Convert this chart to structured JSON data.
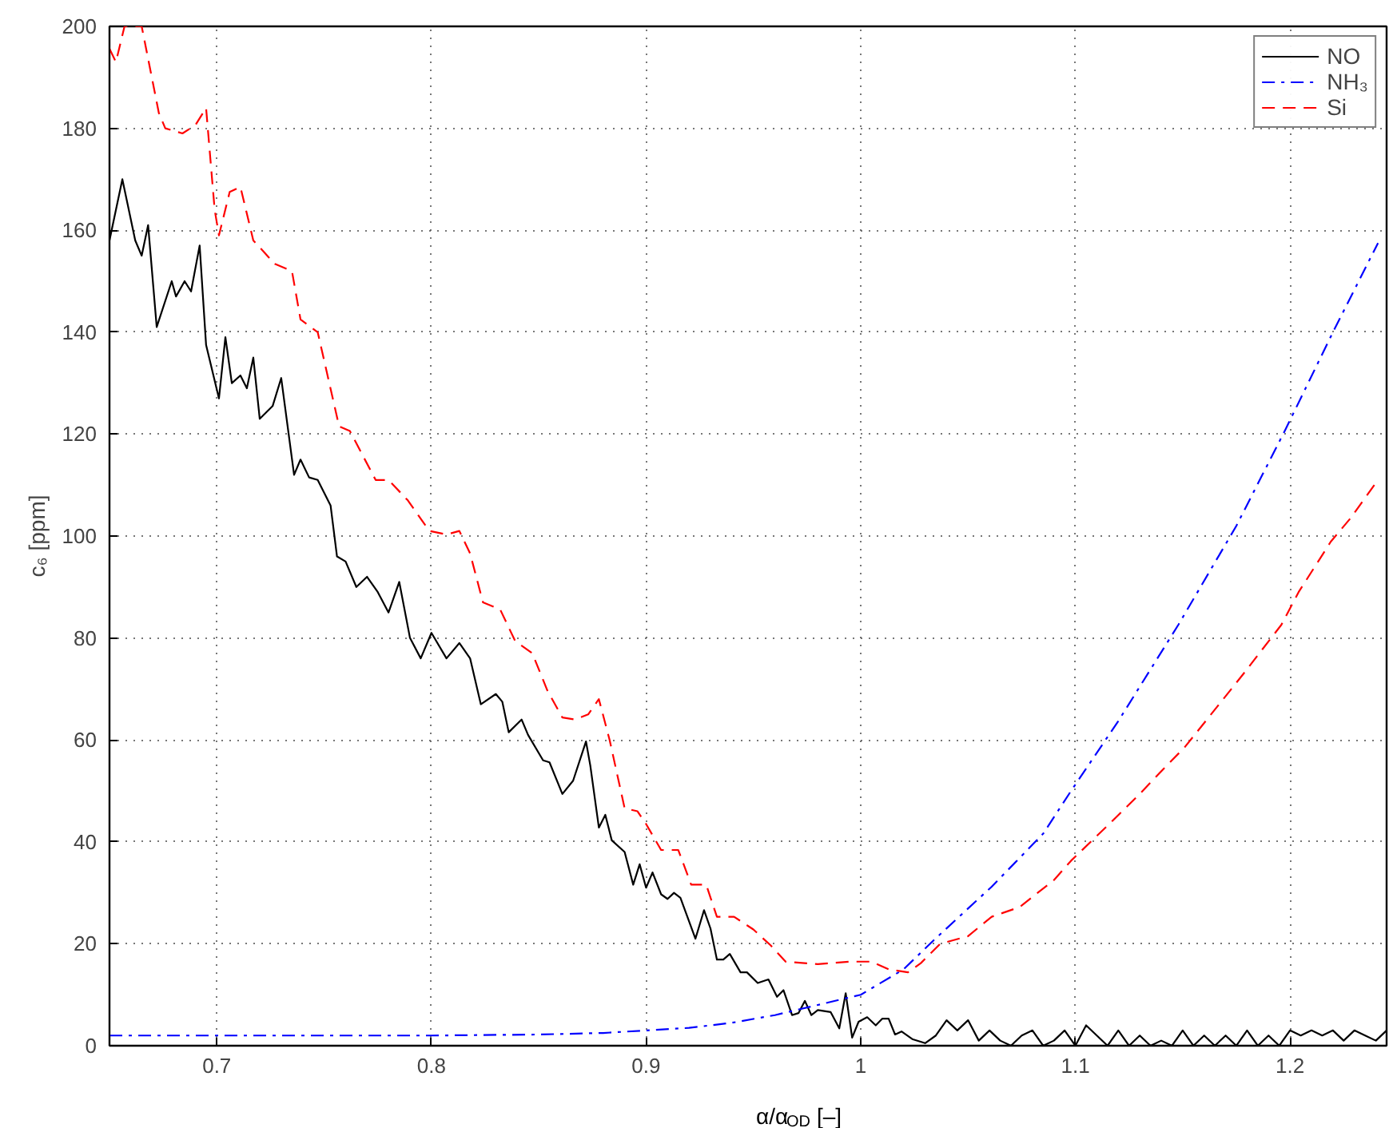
{
  "chart_data": {
    "type": "line",
    "xlabel": "α/α$_{OD}$ [–]",
    "ylabel": "c₆ [ppm]",
    "xlim": [
      0.65,
      1.245
    ],
    "ylim": [
      0,
      200
    ],
    "xticks": [
      0.7,
      0.8,
      0.9,
      {
        "value": 1.0,
        "label": "1"
      },
      1.1,
      1.2
    ],
    "yticks": [
      0,
      20,
      40,
      60,
      80,
      100,
      120,
      140,
      160,
      180,
      200
    ],
    "grid": true,
    "legend": "top right",
    "series": [
      {
        "name": "NO",
        "color": "#000000",
        "line_style": "solid",
        "x": [
          0.65,
          0.656,
          0.662,
          0.665,
          0.668,
          0.672,
          0.679,
          0.681,
          0.685,
          0.688,
          0.692,
          0.695,
          0.701,
          0.704,
          0.707,
          0.711,
          0.714,
          0.717,
          0.72,
          0.726,
          0.73,
          0.736,
          0.739,
          0.743,
          0.747,
          0.75,
          0.753,
          0.756,
          0.76,
          0.765,
          0.77,
          0.775,
          0.78,
          0.785,
          0.79,
          0.795,
          0.8,
          0.807,
          0.813,
          0.818,
          0.823,
          0.83,
          0.833,
          0.836,
          0.842,
          0.845,
          0.852,
          0.855,
          0.861,
          0.866,
          0.872,
          0.874,
          0.878,
          0.881,
          0.884,
          0.89,
          0.894,
          0.897,
          0.9,
          0.903,
          0.907,
          0.91,
          0.913,
          0.916,
          0.923,
          0.927,
          0.93,
          0.933,
          0.936,
          0.939,
          0.944,
          0.947,
          0.952,
          0.957,
          0.961,
          0.964,
          0.968,
          0.971,
          0.974,
          0.977,
          0.98,
          0.986,
          0.99,
          0.993,
          0.996,
          0.999,
          1.003,
          1.007,
          1.01,
          1.013,
          1.016,
          1.019,
          1.024,
          1.03,
          1.035,
          1.04,
          1.045,
          1.05,
          1.055,
          1.06,
          1.065,
          1.07,
          1.075,
          1.08,
          1.085,
          1.09,
          1.095,
          1.1,
          1.105,
          1.11,
          1.115,
          1.12,
          1.125,
          1.13,
          1.135,
          1.14,
          1.145,
          1.15,
          1.155,
          1.16,
          1.165,
          1.17,
          1.175,
          1.18,
          1.185,
          1.19,
          1.195,
          1.2,
          1.205,
          1.21,
          1.215,
          1.22,
          1.225,
          1.23,
          1.235,
          1.24,
          1.245
        ],
        "values": [
          158,
          170,
          158,
          155,
          161,
          141,
          150,
          147,
          150,
          148,
          157,
          137.5,
          127,
          139,
          130,
          131.5,
          129,
          135,
          123,
          125.5,
          131,
          112,
          115,
          111.5,
          111,
          108.5,
          106,
          96,
          95,
          90,
          92,
          89,
          85,
          91,
          80,
          76,
          81,
          76,
          79,
          76,
          67,
          69,
          67.5,
          61.5,
          64,
          61,
          56,
          55.6,
          49.4,
          52,
          59.7,
          55,
          42.8,
          45.3,
          40.3,
          38,
          31.6,
          35.6,
          31,
          34,
          29.7,
          28.8,
          30,
          29,
          21,
          26.6,
          23,
          16.9,
          16.9,
          18,
          14.4,
          14.4,
          12.3,
          13,
          9.6,
          10.9,
          6,
          6.4,
          8.8,
          6,
          7,
          6.6,
          3.4,
          10.3,
          1.6,
          4.7,
          5.6,
          4,
          5.3,
          5.3,
          2.2,
          2.8,
          1.3,
          0.5,
          2,
          5,
          3,
          5,
          1,
          3,
          1,
          0,
          2,
          3,
          0,
          1,
          3,
          0,
          4,
          2,
          0,
          3,
          0,
          2,
          0,
          1,
          0,
          3,
          0,
          2,
          0,
          2,
          0,
          3,
          0,
          2,
          0,
          3,
          2,
          3,
          2,
          3,
          1,
          3,
          2,
          1,
          3
        ]
      },
      {
        "name": "NH₃",
        "color": "#0000ff",
        "line_style": "dashdot",
        "x": [
          0.65,
          0.7,
          0.75,
          0.8,
          0.85,
          0.88,
          0.9,
          0.92,
          0.94,
          0.96,
          0.98,
          1.0,
          1.02,
          1.034,
          1.061,
          1.085,
          1.098,
          1.12,
          1.148,
          1.175,
          1.198,
          1.22,
          1.241
        ],
        "values": [
          2,
          2,
          2,
          2,
          2.2,
          2.5,
          3,
          3.5,
          4.5,
          6,
          8,
          10,
          15,
          20.7,
          31.2,
          41.6,
          50,
          63.7,
          82.6,
          102,
          121,
          140,
          157.5
        ]
      },
      {
        "name": "Si",
        "color": "#ff0000",
        "line_style": "dashed",
        "x": [
          0.65,
          0.653,
          0.657,
          0.665,
          0.673,
          0.676,
          0.684,
          0.69,
          0.695,
          0.699,
          0.701,
          0.706,
          0.711,
          0.717,
          0.727,
          0.735,
          0.739,
          0.747,
          0.757,
          0.762,
          0.774,
          0.78,
          0.789,
          0.799,
          0.807,
          0.813,
          0.818,
          0.824,
          0.832,
          0.839,
          0.847,
          0.854,
          0.861,
          0.867,
          0.873,
          0.878,
          0.883,
          0.89,
          0.896,
          0.9,
          0.907,
          0.915,
          0.921,
          0.928,
          0.933,
          0.941,
          0.95,
          0.958,
          0.965,
          0.98,
          0.995,
          1.005,
          1.013,
          1.022,
          1.028,
          1.037,
          1.05,
          1.061,
          1.074,
          1.09,
          1.098,
          1.117,
          1.13,
          1.139,
          1.151,
          1.167,
          1.178,
          1.196,
          1.204,
          1.219,
          1.228,
          1.241
        ],
        "values": [
          195.6,
          193,
          200,
          200,
          183,
          180,
          179,
          180.6,
          184,
          164,
          159,
          167.5,
          168.5,
          158,
          153.4,
          152,
          142.5,
          140,
          121.5,
          120.6,
          111,
          111,
          107,
          101,
          100.3,
          101,
          96.6,
          87,
          85.6,
          79.4,
          77,
          69.7,
          64.4,
          64,
          65,
          68,
          60,
          46.6,
          46,
          43.5,
          38.4,
          38.4,
          31.6,
          31.6,
          25.3,
          25.3,
          22.8,
          19.7,
          16.5,
          16,
          16.5,
          16.5,
          15,
          14.4,
          16.2,
          20,
          21.5,
          25.3,
          27.2,
          32.5,
          36.3,
          44,
          49.4,
          53.4,
          58.6,
          67,
          72.8,
          82.6,
          89,
          98.9,
          103.4,
          111
        ]
      }
    ]
  }
}
